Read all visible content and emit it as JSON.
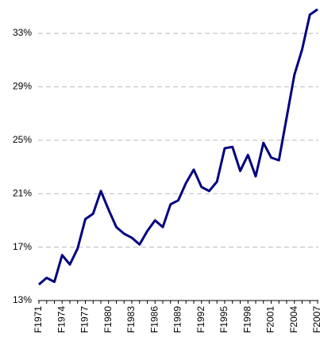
{
  "chart_data": {
    "type": "line",
    "categories": [
      "F1971",
      null,
      null,
      "F1974",
      null,
      null,
      "F1977",
      null,
      null,
      "F1980",
      null,
      null,
      "F1983",
      null,
      null,
      "F1986",
      null,
      null,
      "F1989",
      null,
      null,
      "F1992",
      null,
      null,
      "F1995",
      null,
      null,
      "F1998",
      null,
      null,
      "F2001",
      null,
      null,
      "F2004",
      null,
      null,
      "F2007"
    ],
    "series": [
      {
        "color": "#000080",
        "values": [
          14.2,
          14.7,
          14.4,
          16.4,
          15.7,
          16.9,
          19.1,
          19.5,
          21.2,
          19.8,
          18.5,
          18.0,
          17.7,
          17.2,
          18.2,
          19.0,
          18.5,
          20.2,
          20.5,
          21.8,
          22.8,
          21.5,
          21.2,
          21.9,
          24.4,
          24.5,
          22.7,
          23.9,
          22.3,
          24.8,
          23.7,
          23.5,
          26.7,
          29.9,
          31.8,
          34.4,
          34.8
        ]
      }
    ],
    "ylim": [
      13,
      35.2
    ],
    "yticks": [
      {
        "value": 13,
        "label": "13%"
      },
      {
        "value": 17,
        "label": "17%"
      },
      {
        "value": 21,
        "label": "21%"
      },
      {
        "value": 25,
        "label": "25%"
      },
      {
        "value": 29,
        "label": "29%"
      },
      {
        "value": 33,
        "label": "33%"
      }
    ],
    "grid": true
  }
}
